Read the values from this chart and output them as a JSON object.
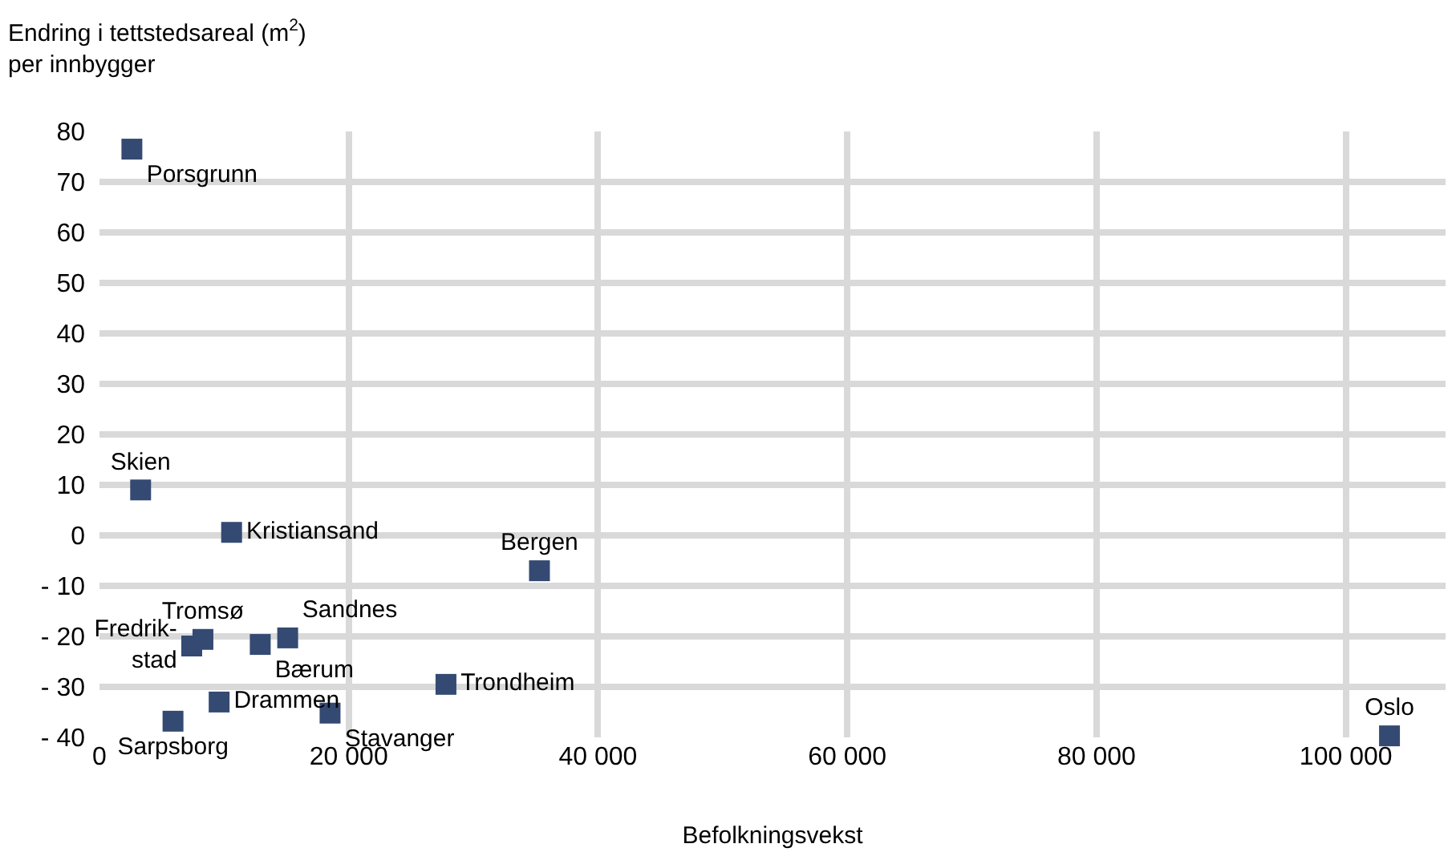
{
  "chart_data": {
    "type": "scatter",
    "ylabel": "Endring i tettstedsareal (m$^{2}$)\nper innbygger",
    "xlabel": "Befolkningsvekst",
    "x": [
      2600,
      3300,
      10600,
      35300,
      8300,
      7400,
      12900,
      15100,
      27800,
      9600,
      18500,
      5900,
      103500
    ],
    "series": [
      {
        "color": "#344a72",
        "values": [
          76.5,
          9,
          0.6,
          -7,
          -20.6,
          -21.9,
          -21.6,
          -20.3,
          -29.5,
          -33,
          -35.2,
          -36.8,
          -39.7
        ],
        "value_labels": [
          "Porsgrunn",
          "Skien",
          "Kristiansand",
          "Bergen",
          "Tromsø",
          "Fredrik-\nstad",
          "Bærum",
          "Sandnes",
          "Trondheim",
          "Drammen",
          "Stavanger",
          "Sarpsborg",
          "Oslo"
        ]
      }
    ],
    "xlim": [
      0,
      108000
    ],
    "xticks": [
      0,
      {
        "value": 20000,
        "label": "20 000"
      },
      {
        "value": 40000,
        "label": "40 000"
      },
      {
        "value": 60000,
        "label": "60 000"
      },
      {
        "value": 80000,
        "label": "80 000"
      },
      {
        "value": 100000,
        "label": "100 000"
      }
    ],
    "ylim": [
      -40,
      80
    ],
    "yticks": [
      {
        "value": -40,
        "label": "- 40"
      },
      {
        "value": -30,
        "label": "- 30"
      },
      {
        "value": -20,
        "label": "- 20"
      },
      {
        "value": -10,
        "label": "- 10"
      },
      0,
      10,
      20,
      30,
      40,
      50,
      60,
      70,
      80
    ],
    "grid": true,
    "marker": "square"
  }
}
